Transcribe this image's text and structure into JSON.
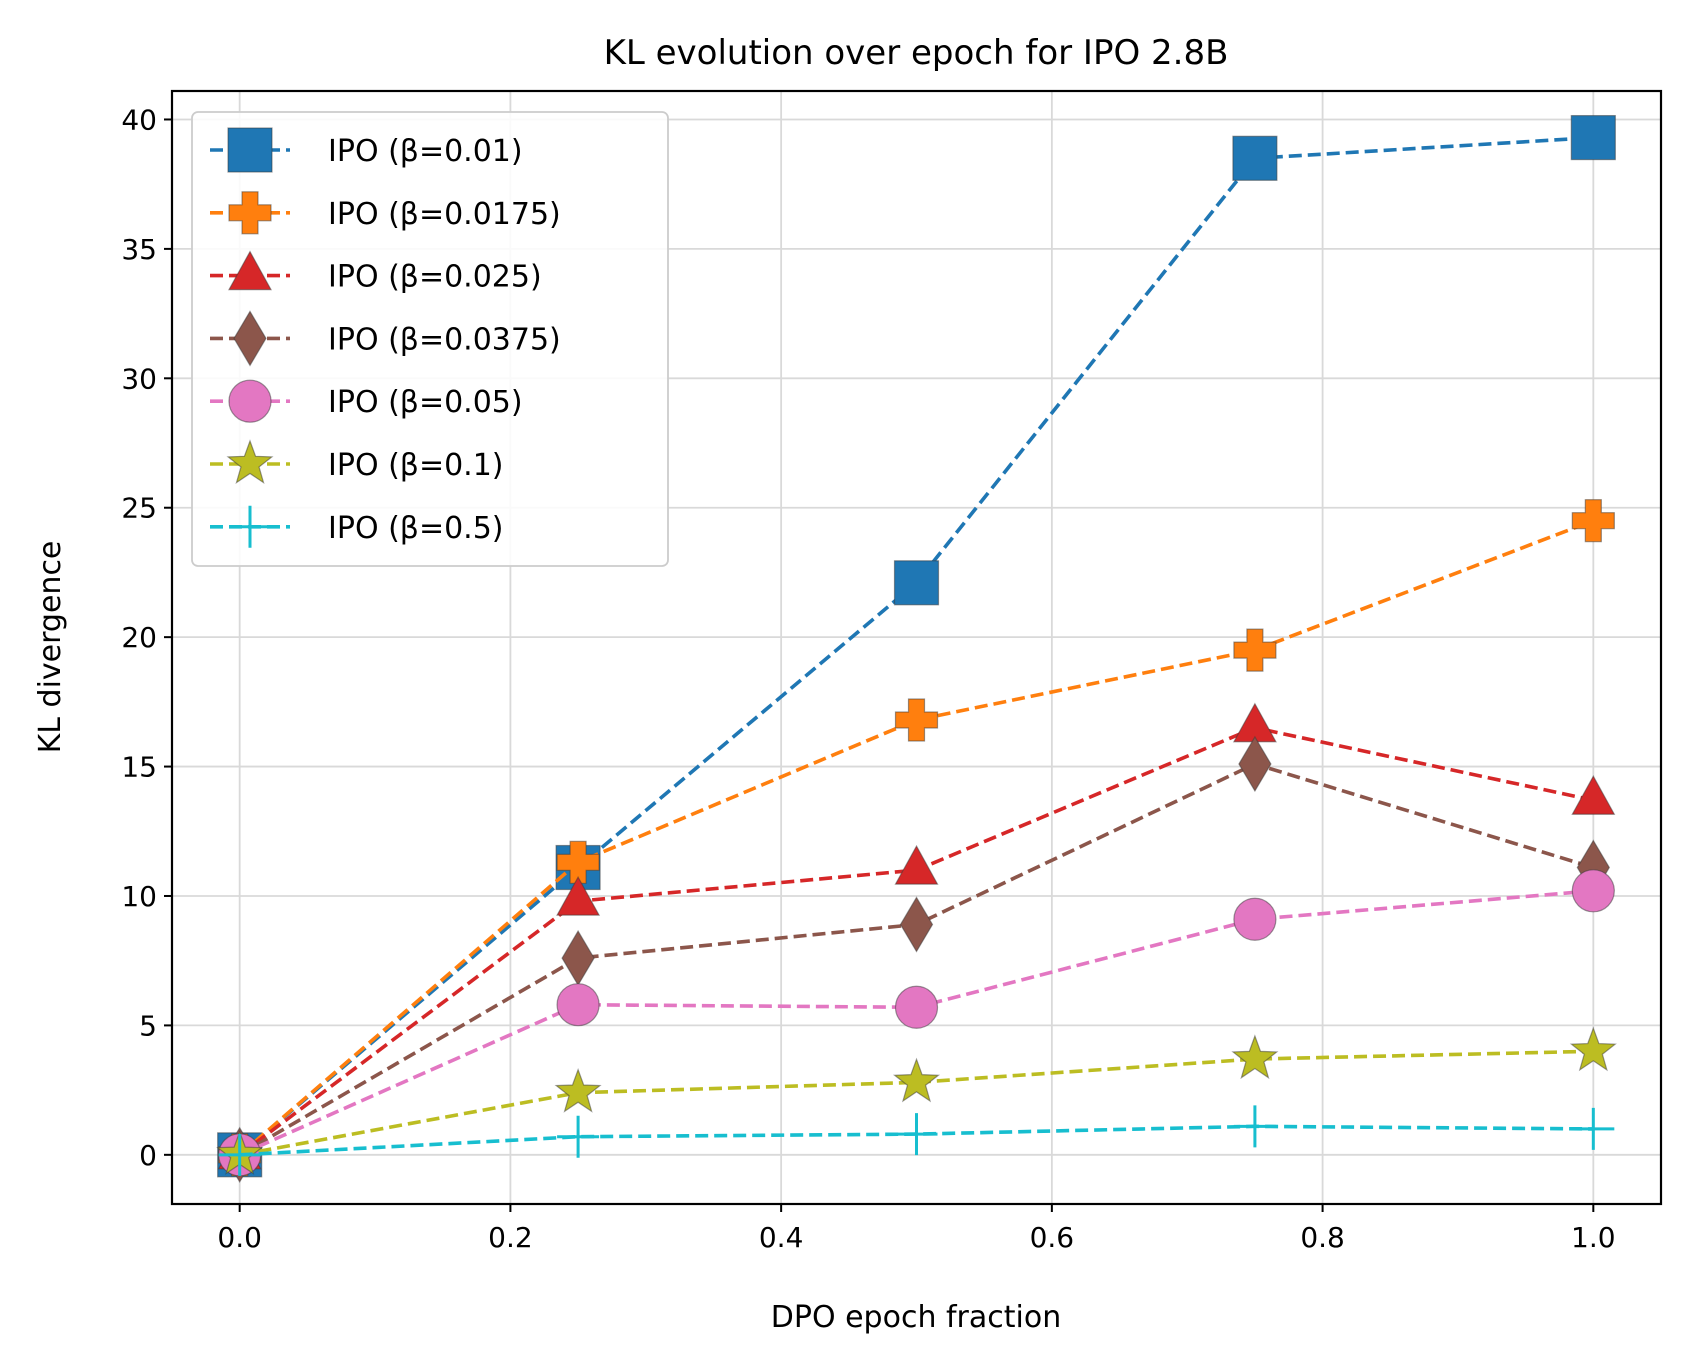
{
  "chart_data": {
    "type": "line",
    "title": "KL evolution over epoch for IPO 2.8B",
    "xlabel": "DPO epoch fraction",
    "ylabel": "KL divergence",
    "xlim": [
      -0.05,
      1.05
    ],
    "ylim": [
      -1.9,
      41.1
    ],
    "xticks": [
      0.0,
      0.2,
      0.4,
      0.6,
      0.8,
      1.0
    ],
    "xtick_labels": [
      "0.0",
      "0.2",
      "0.4",
      "0.6",
      "0.8",
      "1.0"
    ],
    "yticks": [
      0,
      5,
      10,
      15,
      20,
      25,
      30,
      35,
      40
    ],
    "ytick_labels": [
      "0",
      "5",
      "10",
      "15",
      "20",
      "25",
      "30",
      "35",
      "40"
    ],
    "grid": true,
    "legend_position": "top-left",
    "x": [
      0.0,
      0.25,
      0.5,
      0.75,
      1.0
    ],
    "series": [
      {
        "name": "IPO (β=0.01)",
        "color": "#1f77b4",
        "marker": "square",
        "values": [
          0.0,
          11.1,
          22.1,
          38.5,
          39.3
        ]
      },
      {
        "name": "IPO (β=0.0175)",
        "color": "#ff7f0e",
        "marker": "plus-filled",
        "values": [
          0.0,
          11.3,
          16.8,
          19.5,
          24.5
        ]
      },
      {
        "name": "IPO (β=0.025)",
        "color": "#d62728",
        "marker": "triangle",
        "values": [
          0.0,
          9.8,
          11.0,
          16.5,
          13.7
        ]
      },
      {
        "name": "IPO (β=0.0375)",
        "color": "#8c564b",
        "marker": "diamond",
        "values": [
          0.0,
          7.6,
          8.9,
          15.1,
          11.1
        ]
      },
      {
        "name": "IPO (β=0.05)",
        "color": "#e377c2",
        "marker": "circle",
        "values": [
          0.0,
          5.8,
          5.7,
          9.1,
          10.2
        ]
      },
      {
        "name": "IPO (β=0.1)",
        "color": "#bcbd22",
        "marker": "star",
        "values": [
          0.0,
          2.4,
          2.8,
          3.7,
          4.0
        ]
      },
      {
        "name": "IPO (β=0.5)",
        "color": "#17becf",
        "marker": "plus",
        "values": [
          0.0,
          0.7,
          0.8,
          1.1,
          1.0
        ]
      }
    ]
  }
}
